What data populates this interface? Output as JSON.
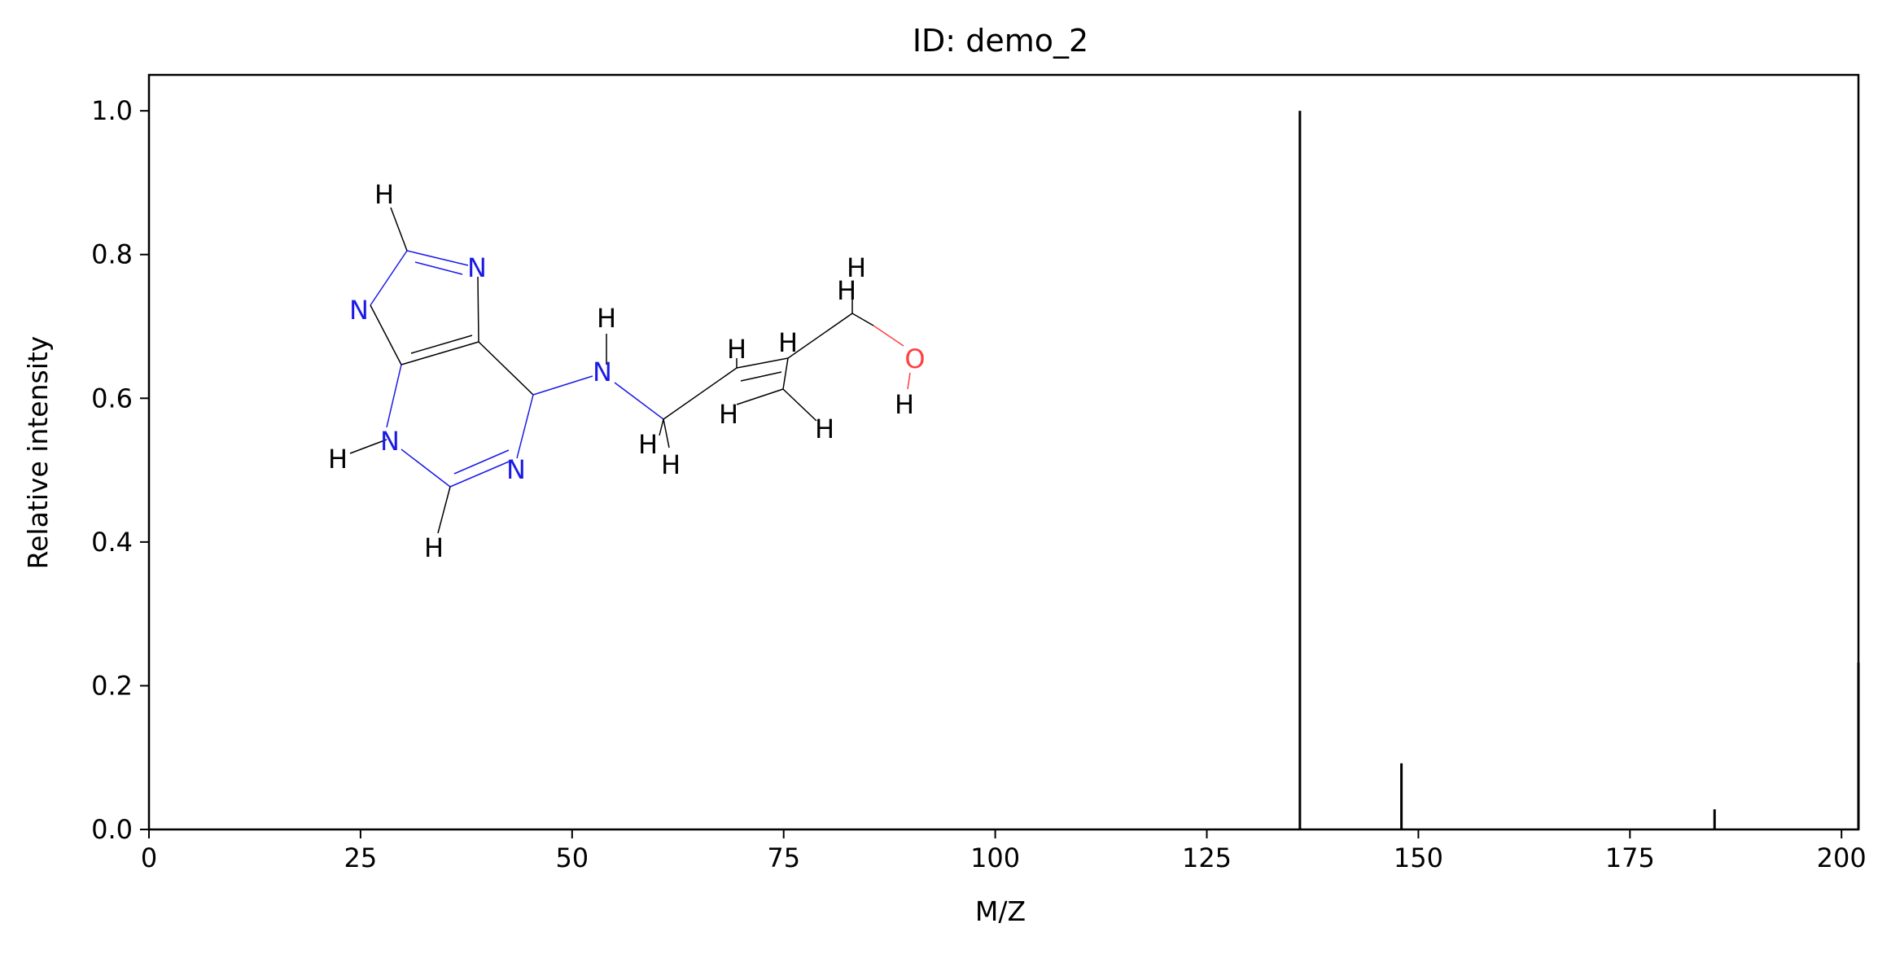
{
  "chart_data": {
    "type": "bar",
    "title": "ID: demo_2",
    "xlabel": "M/Z",
    "ylabel": "Relative intensity",
    "xlim": [
      0,
      202
    ],
    "ylim": [
      0,
      1.05
    ],
    "xticks": [
      0,
      25,
      50,
      75,
      100,
      125,
      150,
      175,
      200
    ],
    "yticks": [
      0.0,
      0.2,
      0.4,
      0.6,
      0.8,
      1.0
    ],
    "grid": false,
    "peaks": [
      {
        "mz": 136,
        "intensity": 1.0
      },
      {
        "mz": 148,
        "intensity": 0.092
      },
      {
        "mz": 185,
        "intensity": 0.028
      },
      {
        "mz": 202,
        "intensity": 0.232
      }
    ],
    "molecule_labels": {
      "h_top": "H",
      "n_top": "N",
      "n_left": "N",
      "h_nh": "H",
      "n_nh": "N",
      "h_left": "H",
      "n_ring_bl": "N",
      "n_ring_b": "N",
      "h_bottom": "H",
      "h_ch2a": "H",
      "h_ch2b": "H",
      "h_ch1": "H",
      "h_ch1b": "H",
      "h_ch2c": "H",
      "h_ch3": "H",
      "h_top1": "H",
      "h_top2": "H",
      "o": "O",
      "h_o": "H"
    },
    "molecule_colors": {
      "bond": "#000000",
      "nitrogen": "#1a1ae6",
      "oxygen": "#ff4040"
    }
  }
}
